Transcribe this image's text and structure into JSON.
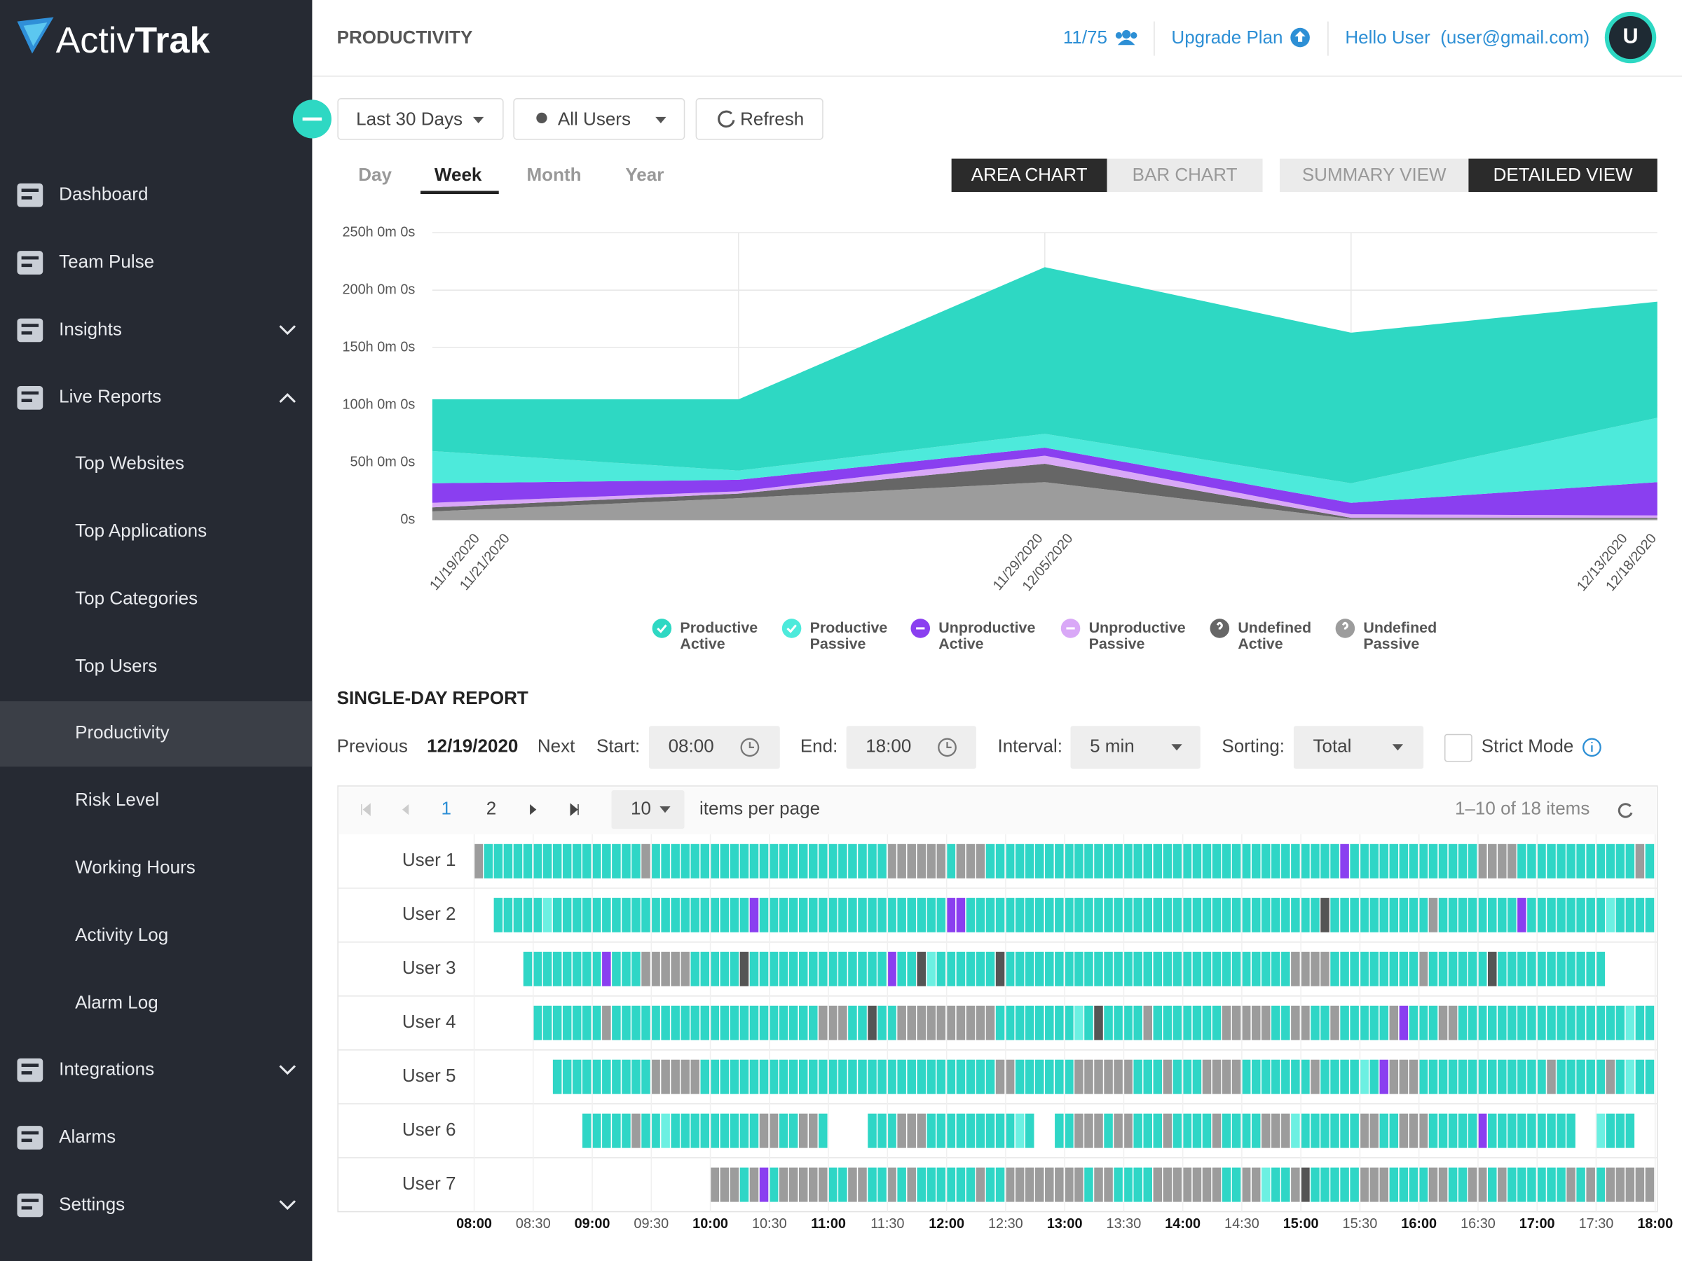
{
  "sidebar": {
    "logo": [
      "Activ",
      "Trak"
    ],
    "nav": [
      "Dashboard",
      "Team Pulse",
      "Insights",
      "Live Reports",
      "Top Websites",
      "Top Applications",
      "Top Categories",
      "Top Users",
      "Productivity",
      "Risk Level",
      "Working Hours",
      "Activity Log",
      "Alarm Log",
      "Integrations",
      "Alarms",
      "Settings"
    ]
  },
  "header": {
    "title": "PRODUCTIVITY",
    "licenses": "11/75",
    "upgrade": "Upgrade Plan",
    "greeting": "Hello User  (user@gmail.com)",
    "avatar": "U"
  },
  "filters": [
    "Last 30 Days",
    "All Users",
    "Refresh"
  ],
  "tabs": [
    "Day",
    "Week",
    "Month",
    "Year"
  ],
  "chart_toggles": [
    "AREA CHART",
    "BAR CHART"
  ],
  "view_toggles": [
    "SUMMARY VIEW",
    "DETAILED VIEW"
  ],
  "chart_data": {
    "type": "area",
    "stacked": true,
    "categories": [
      [
        "11/19/2020",
        "11/21/2020"
      ],
      null,
      [
        "11/29/2020",
        "12/05/2020"
      ],
      null,
      [
        "12/13/2020",
        "12/18/2020"
      ]
    ],
    "series": [
      {
        "name": "Productive Active",
        "color": "#2ed8c3",
        "values": [
          45,
          62,
          145,
          131,
          101
        ]
      },
      {
        "name": "Productive Passive",
        "color": "#4deadb",
        "values": [
          28,
          8,
          12,
          17,
          56
        ]
      },
      {
        "name": "Unproductive Active",
        "color": "#8a3ff0",
        "values": [
          17,
          10,
          7,
          10,
          29
        ]
      },
      {
        "name": "Unproductive Passive",
        "color": "#d9a8f7",
        "values": [
          4,
          2,
          7,
          3,
          2
        ]
      },
      {
        "name": "Undefined Active",
        "color": "#666666",
        "values": [
          3.5,
          4,
          16,
          1,
          1
        ]
      },
      {
        "name": "Undefined Passive",
        "color": "#9c9c9c",
        "values": [
          7.5,
          19,
          33,
          1,
          1
        ]
      }
    ],
    "ylim": [
      0,
      250
    ],
    "yticks": [
      {
        "value": 0,
        "label": "0s"
      },
      {
        "value": 50,
        "label": "50h 0m 0s"
      },
      {
        "value": 100,
        "label": "100h 0m 0s"
      },
      {
        "value": 150,
        "label": "150h 0m 0s"
      },
      {
        "value": 200,
        "label": "200h 0m 0s"
      },
      {
        "value": 250,
        "label": "250h 0m 0s"
      }
    ],
    "grid": true
  },
  "report": {
    "title": "SINGLE-DAY REPORT",
    "previous": "Previous",
    "date": "12/19/2020",
    "next": "Next",
    "start_label": "Start:",
    "start": "08:00",
    "end_label": "End:",
    "end": "18:00",
    "interval_label": "Interval:",
    "interval": "5 min",
    "sorting_label": "Sorting:",
    "sorting": "Total",
    "strict_mode": "Strict Mode",
    "pager": {
      "pages": [
        1,
        2
      ],
      "per_page": 10,
      "per_page_label": "items per page",
      "summary": "1–10 of 18 items"
    },
    "users": [
      "User 1",
      "User 2",
      "User 3",
      "User 4",
      "User 5",
      "User 6",
      "User 7"
    ],
    "time_ticks": [
      "08:00",
      "08:30",
      "09:00",
      "09:30",
      "10:00",
      "10:30",
      "11:00",
      "11:30",
      "12:00",
      "12:30",
      "13:00",
      "13:30",
      "14:00",
      "14:30",
      "15:00",
      "15:30",
      "16:00",
      "16:30",
      "17:00",
      "17:30",
      "18:00"
    ]
  }
}
